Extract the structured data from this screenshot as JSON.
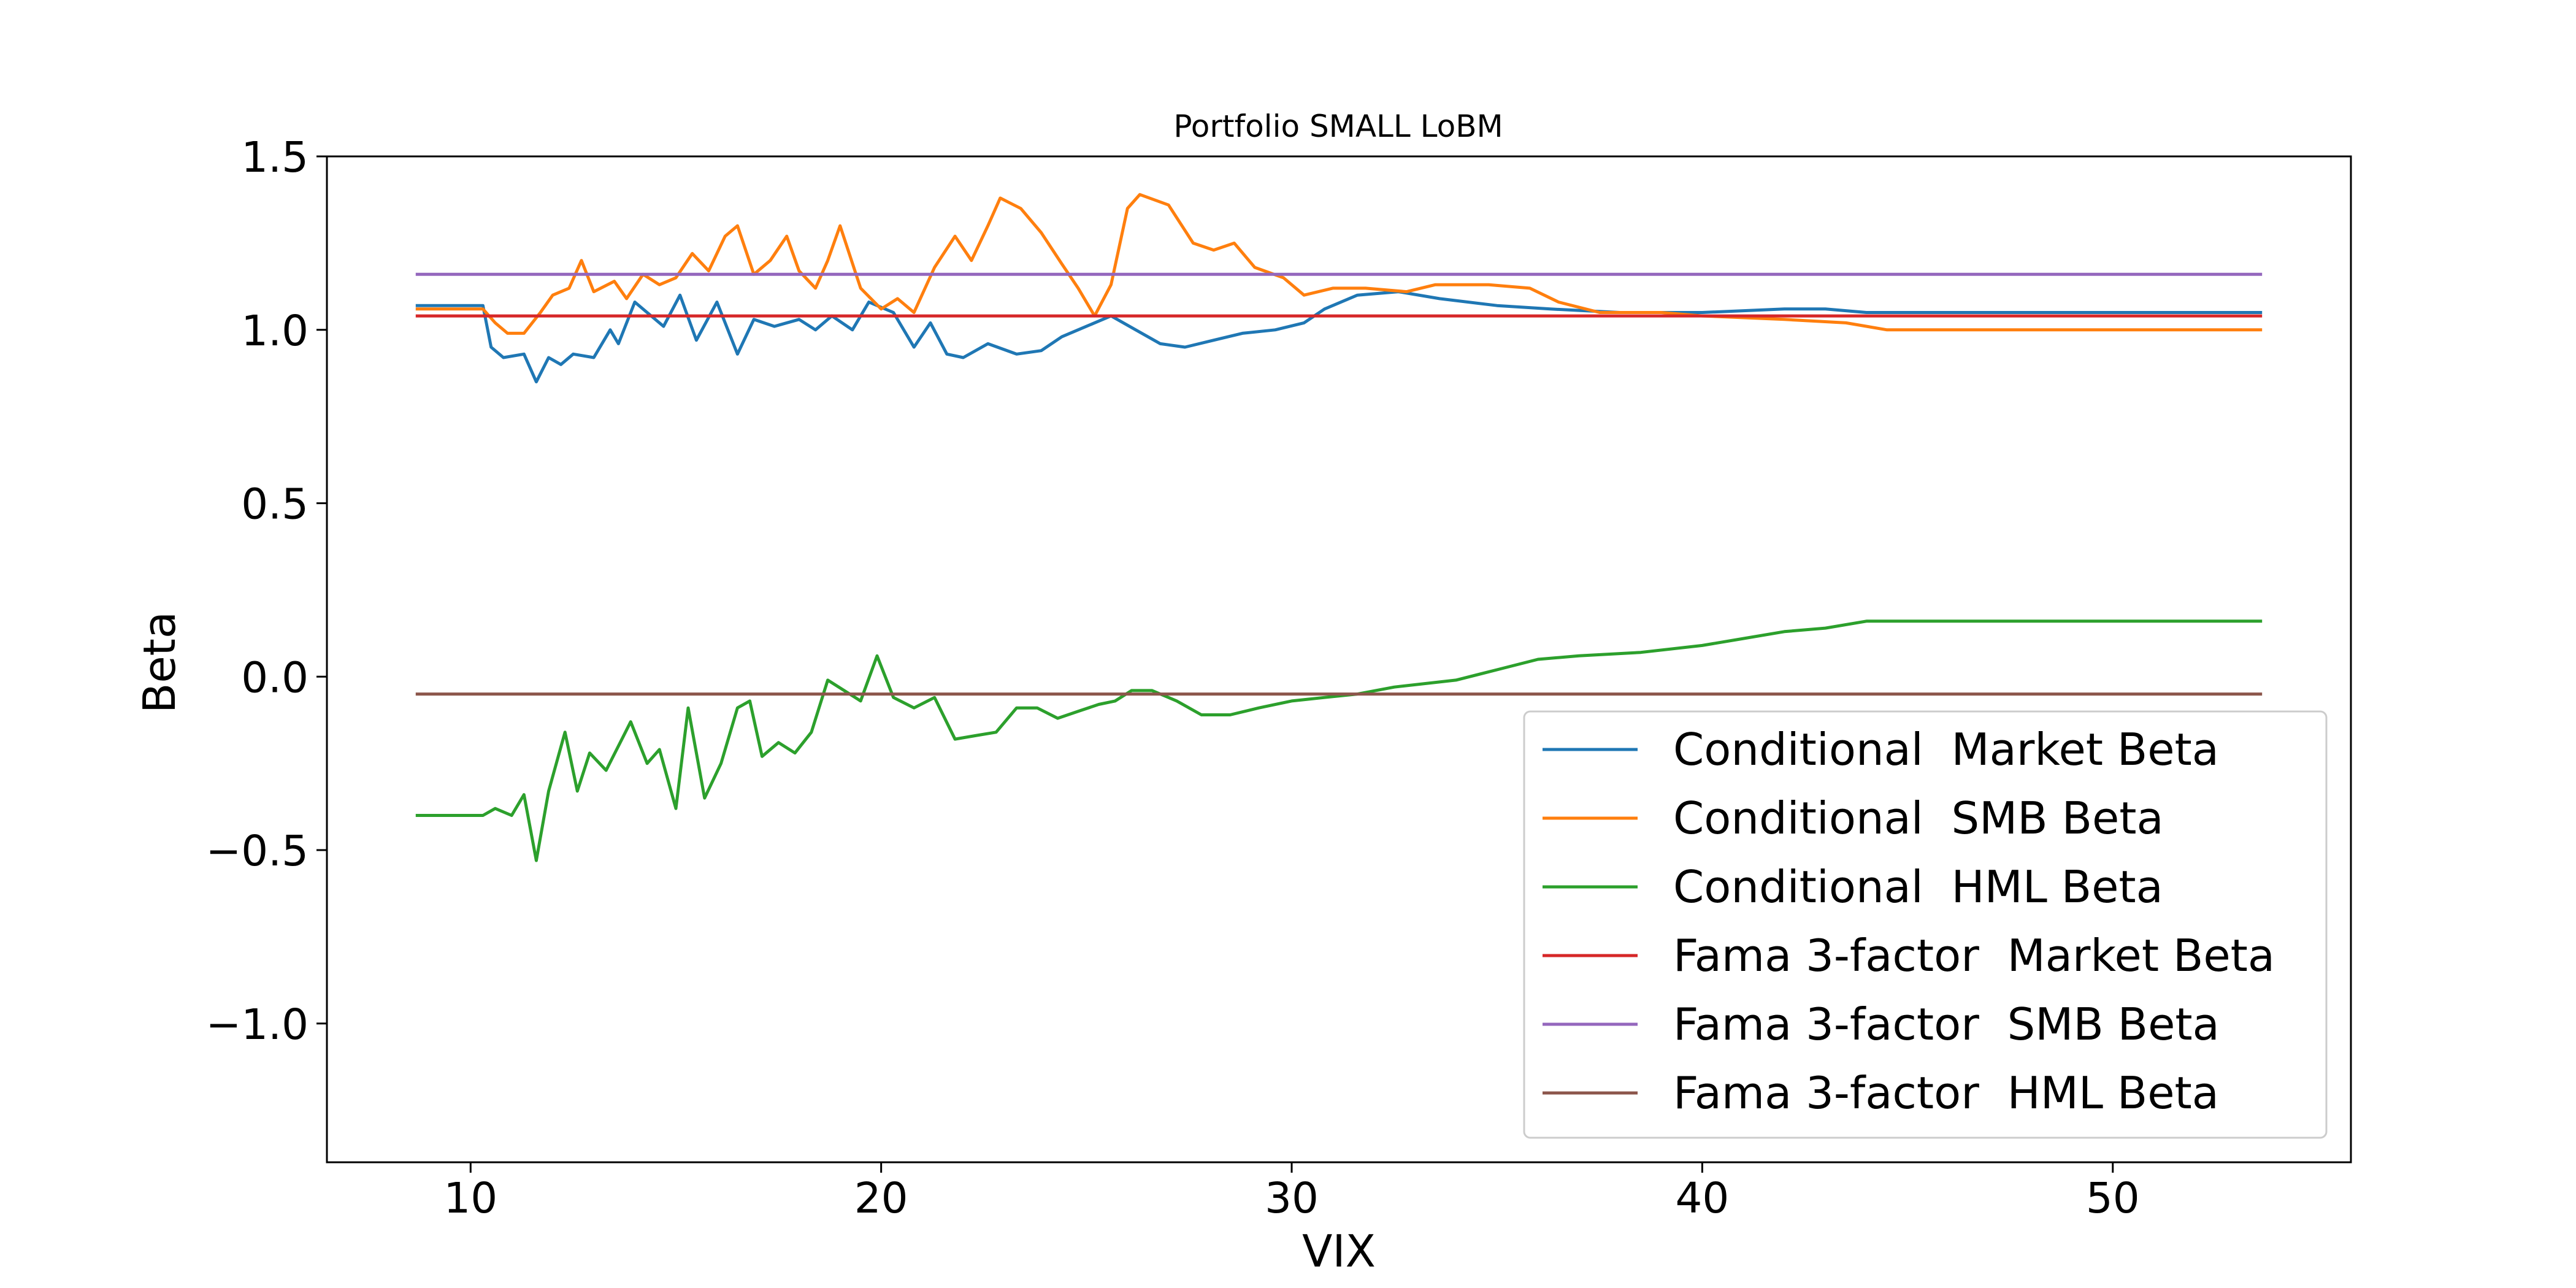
{
  "chart_data": {
    "type": "line",
    "title": "Portfolio SMALL LoBM",
    "xlabel": "VIX",
    "ylabel": "Beta",
    "xlim": [
      6.5,
      55.8
    ],
    "ylim": [
      -1.4,
      1.5
    ],
    "xticks": [
      10,
      20,
      30,
      40,
      50
    ],
    "xtick_labels": [
      "10",
      "20",
      "30",
      "40",
      "50"
    ],
    "yticks": [
      1.5,
      1.0,
      0.5,
      0.0,
      -0.5,
      -1.0
    ],
    "ytick_labels": [
      "1.5",
      "1.0",
      "0.5",
      "0.0",
      "−0.5",
      "−1.0"
    ],
    "grid": false,
    "legend_position": "lower-right",
    "series": [
      {
        "name": "Conditional  Market Beta",
        "color": "#1f77b4",
        "points": [
          [
            8.7,
            1.07
          ],
          [
            10.3,
            1.07
          ],
          [
            10.5,
            0.95
          ],
          [
            10.8,
            0.92
          ],
          [
            11.3,
            0.93
          ],
          [
            11.6,
            0.85
          ],
          [
            11.9,
            0.92
          ],
          [
            12.2,
            0.9
          ],
          [
            12.5,
            0.93
          ],
          [
            13.0,
            0.92
          ],
          [
            13.4,
            1.0
          ],
          [
            13.6,
            0.96
          ],
          [
            14.0,
            1.08
          ],
          [
            14.3,
            1.05
          ],
          [
            14.7,
            1.01
          ],
          [
            15.1,
            1.1
          ],
          [
            15.5,
            0.97
          ],
          [
            16.0,
            1.08
          ],
          [
            16.5,
            0.93
          ],
          [
            16.9,
            1.03
          ],
          [
            17.4,
            1.01
          ],
          [
            18.0,
            1.03
          ],
          [
            18.4,
            1.0
          ],
          [
            18.8,
            1.04
          ],
          [
            19.3,
            1.0
          ],
          [
            19.7,
            1.08
          ],
          [
            20.3,
            1.05
          ],
          [
            20.8,
            0.95
          ],
          [
            21.2,
            1.02
          ],
          [
            21.6,
            0.93
          ],
          [
            22.0,
            0.92
          ],
          [
            22.6,
            0.96
          ],
          [
            23.3,
            0.93
          ],
          [
            23.9,
            0.94
          ],
          [
            24.4,
            0.98
          ],
          [
            25.0,
            1.01
          ],
          [
            25.6,
            1.04
          ],
          [
            26.2,
            1.0
          ],
          [
            26.8,
            0.96
          ],
          [
            27.4,
            0.95
          ],
          [
            28.1,
            0.97
          ],
          [
            28.8,
            0.99
          ],
          [
            29.6,
            1.0
          ],
          [
            30.3,
            1.02
          ],
          [
            30.8,
            1.06
          ],
          [
            31.6,
            1.1
          ],
          [
            32.6,
            1.11
          ],
          [
            33.6,
            1.09
          ],
          [
            35.0,
            1.07
          ],
          [
            36.3,
            1.06
          ],
          [
            38.0,
            1.05
          ],
          [
            40.0,
            1.05
          ],
          [
            42.0,
            1.06
          ],
          [
            43.0,
            1.06
          ],
          [
            44.0,
            1.05
          ],
          [
            46.0,
            1.05
          ],
          [
            53.6,
            1.05
          ]
        ]
      },
      {
        "name": "Conditional  SMB Beta",
        "color": "#ff7f0e",
        "points": [
          [
            8.7,
            1.06
          ],
          [
            10.3,
            1.06
          ],
          [
            10.6,
            1.02
          ],
          [
            10.9,
            0.99
          ],
          [
            11.3,
            0.99
          ],
          [
            11.7,
            1.05
          ],
          [
            12.0,
            1.1
          ],
          [
            12.4,
            1.12
          ],
          [
            12.7,
            1.2
          ],
          [
            13.0,
            1.11
          ],
          [
            13.5,
            1.14
          ],
          [
            13.8,
            1.09
          ],
          [
            14.2,
            1.16
          ],
          [
            14.6,
            1.13
          ],
          [
            15.0,
            1.15
          ],
          [
            15.4,
            1.22
          ],
          [
            15.8,
            1.17
          ],
          [
            16.2,
            1.27
          ],
          [
            16.5,
            1.3
          ],
          [
            16.9,
            1.16
          ],
          [
            17.3,
            1.2
          ],
          [
            17.7,
            1.27
          ],
          [
            18.0,
            1.17
          ],
          [
            18.4,
            1.12
          ],
          [
            18.7,
            1.2
          ],
          [
            19.0,
            1.3
          ],
          [
            19.5,
            1.12
          ],
          [
            20.0,
            1.06
          ],
          [
            20.4,
            1.09
          ],
          [
            20.8,
            1.05
          ],
          [
            21.3,
            1.18
          ],
          [
            21.8,
            1.27
          ],
          [
            22.2,
            1.2
          ],
          [
            22.6,
            1.3
          ],
          [
            22.9,
            1.38
          ],
          [
            23.4,
            1.35
          ],
          [
            23.9,
            1.28
          ],
          [
            24.4,
            1.19
          ],
          [
            24.8,
            1.12
          ],
          [
            25.2,
            1.04
          ],
          [
            25.6,
            1.13
          ],
          [
            26.0,
            1.35
          ],
          [
            26.3,
            1.39
          ],
          [
            27.0,
            1.36
          ],
          [
            27.6,
            1.25
          ],
          [
            28.1,
            1.23
          ],
          [
            28.6,
            1.25
          ],
          [
            29.1,
            1.18
          ],
          [
            29.8,
            1.15
          ],
          [
            30.3,
            1.1
          ],
          [
            31.0,
            1.12
          ],
          [
            31.8,
            1.12
          ],
          [
            32.8,
            1.11
          ],
          [
            33.5,
            1.13
          ],
          [
            34.8,
            1.13
          ],
          [
            35.8,
            1.12
          ],
          [
            36.5,
            1.08
          ],
          [
            37.5,
            1.05
          ],
          [
            39.0,
            1.05
          ],
          [
            40.0,
            1.04
          ],
          [
            42.0,
            1.03
          ],
          [
            43.5,
            1.02
          ],
          [
            44.5,
            1.0
          ],
          [
            53.6,
            1.0
          ]
        ]
      },
      {
        "name": "Conditional  HML Beta",
        "color": "#2ca02c",
        "points": [
          [
            8.7,
            -0.4
          ],
          [
            10.3,
            -0.4
          ],
          [
            10.6,
            -0.38
          ],
          [
            11.0,
            -0.4
          ],
          [
            11.3,
            -0.34
          ],
          [
            11.6,
            -0.53
          ],
          [
            11.9,
            -0.33
          ],
          [
            12.3,
            -0.16
          ],
          [
            12.6,
            -0.33
          ],
          [
            12.9,
            -0.22
          ],
          [
            13.3,
            -0.27
          ],
          [
            13.6,
            -0.2
          ],
          [
            13.9,
            -0.13
          ],
          [
            14.3,
            -0.25
          ],
          [
            14.6,
            -0.21
          ],
          [
            15.0,
            -0.38
          ],
          [
            15.3,
            -0.09
          ],
          [
            15.7,
            -0.35
          ],
          [
            16.1,
            -0.25
          ],
          [
            16.5,
            -0.09
          ],
          [
            16.8,
            -0.07
          ],
          [
            17.1,
            -0.23
          ],
          [
            17.5,
            -0.19
          ],
          [
            17.9,
            -0.22
          ],
          [
            18.3,
            -0.16
          ],
          [
            18.7,
            -0.01
          ],
          [
            19.1,
            -0.04
          ],
          [
            19.5,
            -0.07
          ],
          [
            19.9,
            0.06
          ],
          [
            20.3,
            -0.06
          ],
          [
            20.8,
            -0.09
          ],
          [
            21.3,
            -0.06
          ],
          [
            21.8,
            -0.18
          ],
          [
            22.3,
            -0.17
          ],
          [
            22.8,
            -0.16
          ],
          [
            23.3,
            -0.09
          ],
          [
            23.8,
            -0.09
          ],
          [
            24.3,
            -0.12
          ],
          [
            24.8,
            -0.1
          ],
          [
            25.3,
            -0.08
          ],
          [
            25.7,
            -0.07
          ],
          [
            26.1,
            -0.04
          ],
          [
            26.6,
            -0.04
          ],
          [
            27.2,
            -0.07
          ],
          [
            27.8,
            -0.11
          ],
          [
            28.5,
            -0.11
          ],
          [
            29.2,
            -0.09
          ],
          [
            30.0,
            -0.07
          ],
          [
            30.8,
            -0.06
          ],
          [
            31.6,
            -0.05
          ],
          [
            32.5,
            -0.03
          ],
          [
            34.0,
            -0.01
          ],
          [
            35.0,
            0.02
          ],
          [
            36.0,
            0.05
          ],
          [
            37.0,
            0.06
          ],
          [
            38.5,
            0.07
          ],
          [
            40.0,
            0.09
          ],
          [
            41.0,
            0.11
          ],
          [
            42.0,
            0.13
          ],
          [
            43.0,
            0.14
          ],
          [
            44.0,
            0.16
          ],
          [
            53.6,
            0.16
          ]
        ]
      },
      {
        "name": "Fama 3-factor  Market Beta",
        "color": "#d62728",
        "points": [
          [
            8.7,
            1.04
          ],
          [
            53.6,
            1.04
          ]
        ]
      },
      {
        "name": "Fama 3-factor  SMB Beta",
        "color": "#9467bd",
        "points": [
          [
            8.7,
            1.16
          ],
          [
            53.6,
            1.16
          ]
        ]
      },
      {
        "name": "Fama 3-factor  HML Beta",
        "color": "#8c564b",
        "points": [
          [
            8.7,
            -0.05
          ],
          [
            53.6,
            -0.05
          ]
        ]
      }
    ]
  }
}
